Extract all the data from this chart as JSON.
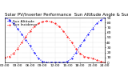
{
  "title": "Solar PV/Inverter Performance  Sun Altitude Angle & Sun Incidence Angle on PV Panels",
  "legend": [
    "Sun Altitude",
    "Sun Incidence"
  ],
  "line_colors": [
    "blue",
    "red"
  ],
  "x_values": [
    0,
    1,
    2,
    3,
    4,
    5,
    6,
    7,
    8,
    9,
    10,
    11,
    12,
    13,
    14,
    15,
    16,
    17,
    18,
    19,
    20,
    21,
    22,
    23,
    24
  ],
  "altitude": [
    90,
    85,
    78,
    68,
    57,
    45,
    33,
    20,
    8,
    2,
    0,
    0,
    0,
    0,
    0,
    2,
    8,
    20,
    33,
    45,
    57,
    68,
    78,
    85,
    90
  ],
  "incidence": [
    10,
    12,
    18,
    28,
    40,
    52,
    63,
    72,
    78,
    82,
    83,
    82,
    78,
    72,
    63,
    52,
    40,
    28,
    18,
    12,
    10,
    8,
    5,
    2,
    0
  ],
  "ylim": [
    0,
    90
  ],
  "xlim": [
    0,
    24
  ],
  "xticks": [
    0,
    3,
    6,
    9,
    12,
    15,
    18,
    21,
    24
  ],
  "yticks": [
    0,
    10,
    20,
    30,
    40,
    50,
    60,
    70,
    80,
    90
  ],
  "background": "#ffffff",
  "grid_color": "#c0c0c0",
  "title_fontsize": 4.0,
  "tick_fontsize": 3.2,
  "legend_fontsize": 3.2,
  "figsize": [
    1.6,
    1.0
  ],
  "dpi": 100
}
